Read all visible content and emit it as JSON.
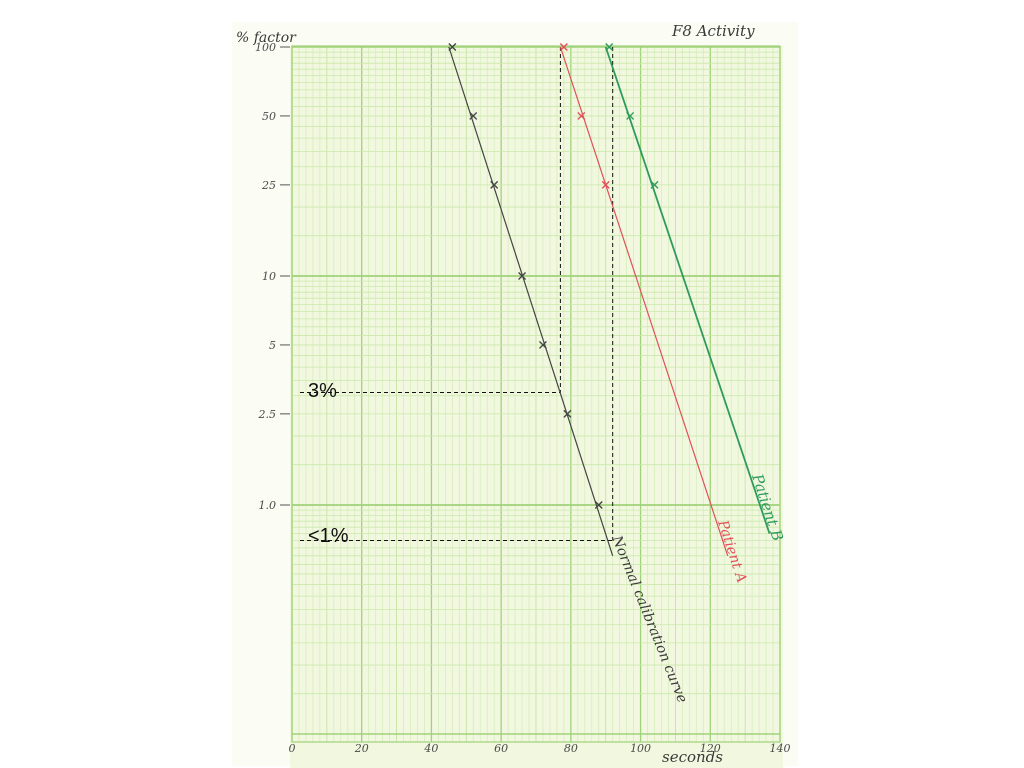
{
  "chart_data": {
    "type": "line",
    "title": "F8 Activity",
    "xlabel": "seconds",
    "ylabel": "% factor",
    "xlim": [
      0,
      140
    ],
    "ylim": [
      0.1,
      100
    ],
    "y_scale": "log",
    "grid": true,
    "x_ticks": [
      0,
      20,
      40,
      60,
      80,
      100,
      120,
      140
    ],
    "x_tick_labels": [
      "0",
      "20",
      "40",
      "60",
      "80",
      "100",
      "120",
      "140"
    ],
    "y_ticks": [
      100,
      50,
      25,
      10,
      5,
      2.5,
      1.0
    ],
    "y_tick_labels": [
      "100",
      "50",
      "25",
      "10",
      "5",
      "2.5",
      "1.0"
    ],
    "series": [
      {
        "name": "Normal calibration curve",
        "color": "#444444",
        "points": [
          [
            46,
            100
          ],
          [
            52,
            50
          ],
          [
            58,
            25
          ],
          [
            66,
            10
          ],
          [
            72,
            5
          ],
          [
            79,
            2.5
          ],
          [
            88,
            1.0
          ]
        ],
        "line": [
          [
            45,
            100
          ],
          [
            92,
            0.6
          ]
        ]
      },
      {
        "name": "Patient A",
        "color": "#e0505a",
        "points": [
          [
            78,
            100
          ],
          [
            83,
            50
          ],
          [
            90,
            25
          ]
        ],
        "line": [
          [
            77,
            100
          ],
          [
            125,
            0.6
          ]
        ]
      },
      {
        "name": "Patient B",
        "color": "#2f9a5e",
        "points": [
          [
            91,
            100
          ],
          [
            97,
            50
          ],
          [
            104,
            25
          ]
        ],
        "line": [
          [
            90,
            100
          ],
          [
            137,
            0.75
          ]
        ]
      }
    ],
    "annotations": [
      {
        "label": "3%",
        "x": 77,
        "y": 3.1
      },
      {
        "label": "<1%",
        "x": 92,
        "y": 0.7
      }
    ]
  }
}
